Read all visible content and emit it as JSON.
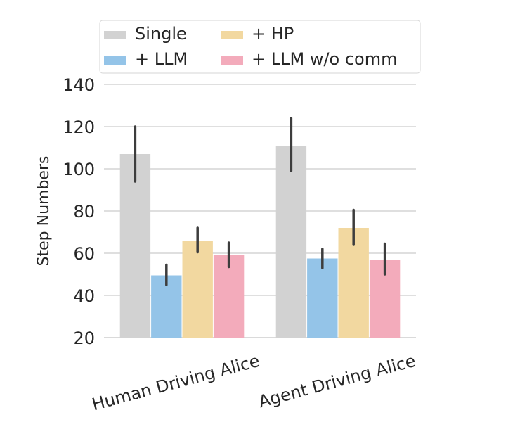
{
  "chart_data": {
    "type": "bar",
    "categories": [
      "Human Driving Alice",
      "Agent Driving Alice"
    ],
    "series": [
      {
        "name": "Single",
        "color": "#d2d2d2",
        "values": [
          107,
          111
        ],
        "error_low": [
          94,
          99
        ],
        "error_high": [
          120,
          124
        ]
      },
      {
        "name": "+ LLM",
        "color": "#94c4e8",
        "values": [
          49.5,
          57.5
        ],
        "error_low": [
          45,
          53
        ],
        "error_high": [
          54.5,
          62
        ]
      },
      {
        "name": "+ HP",
        "color": "#f2d8a0",
        "values": [
          66,
          72
        ],
        "error_low": [
          60.5,
          64
        ],
        "error_high": [
          72,
          80.5
        ]
      },
      {
        "name": "+ LLM w/o comm",
        "color": "#f3abbb",
        "values": [
          59,
          57
        ],
        "error_low": [
          53.5,
          50
        ],
        "error_high": [
          65,
          64.5
        ]
      }
    ],
    "xlabel": "",
    "ylabel": "Step Numbers",
    "ylim": [
      20,
      140
    ],
    "yticks": [
      20,
      40,
      60,
      80,
      100,
      120,
      140
    ],
    "grid": "horizontal",
    "legend_position": "top",
    "legend_columns": 2
  }
}
